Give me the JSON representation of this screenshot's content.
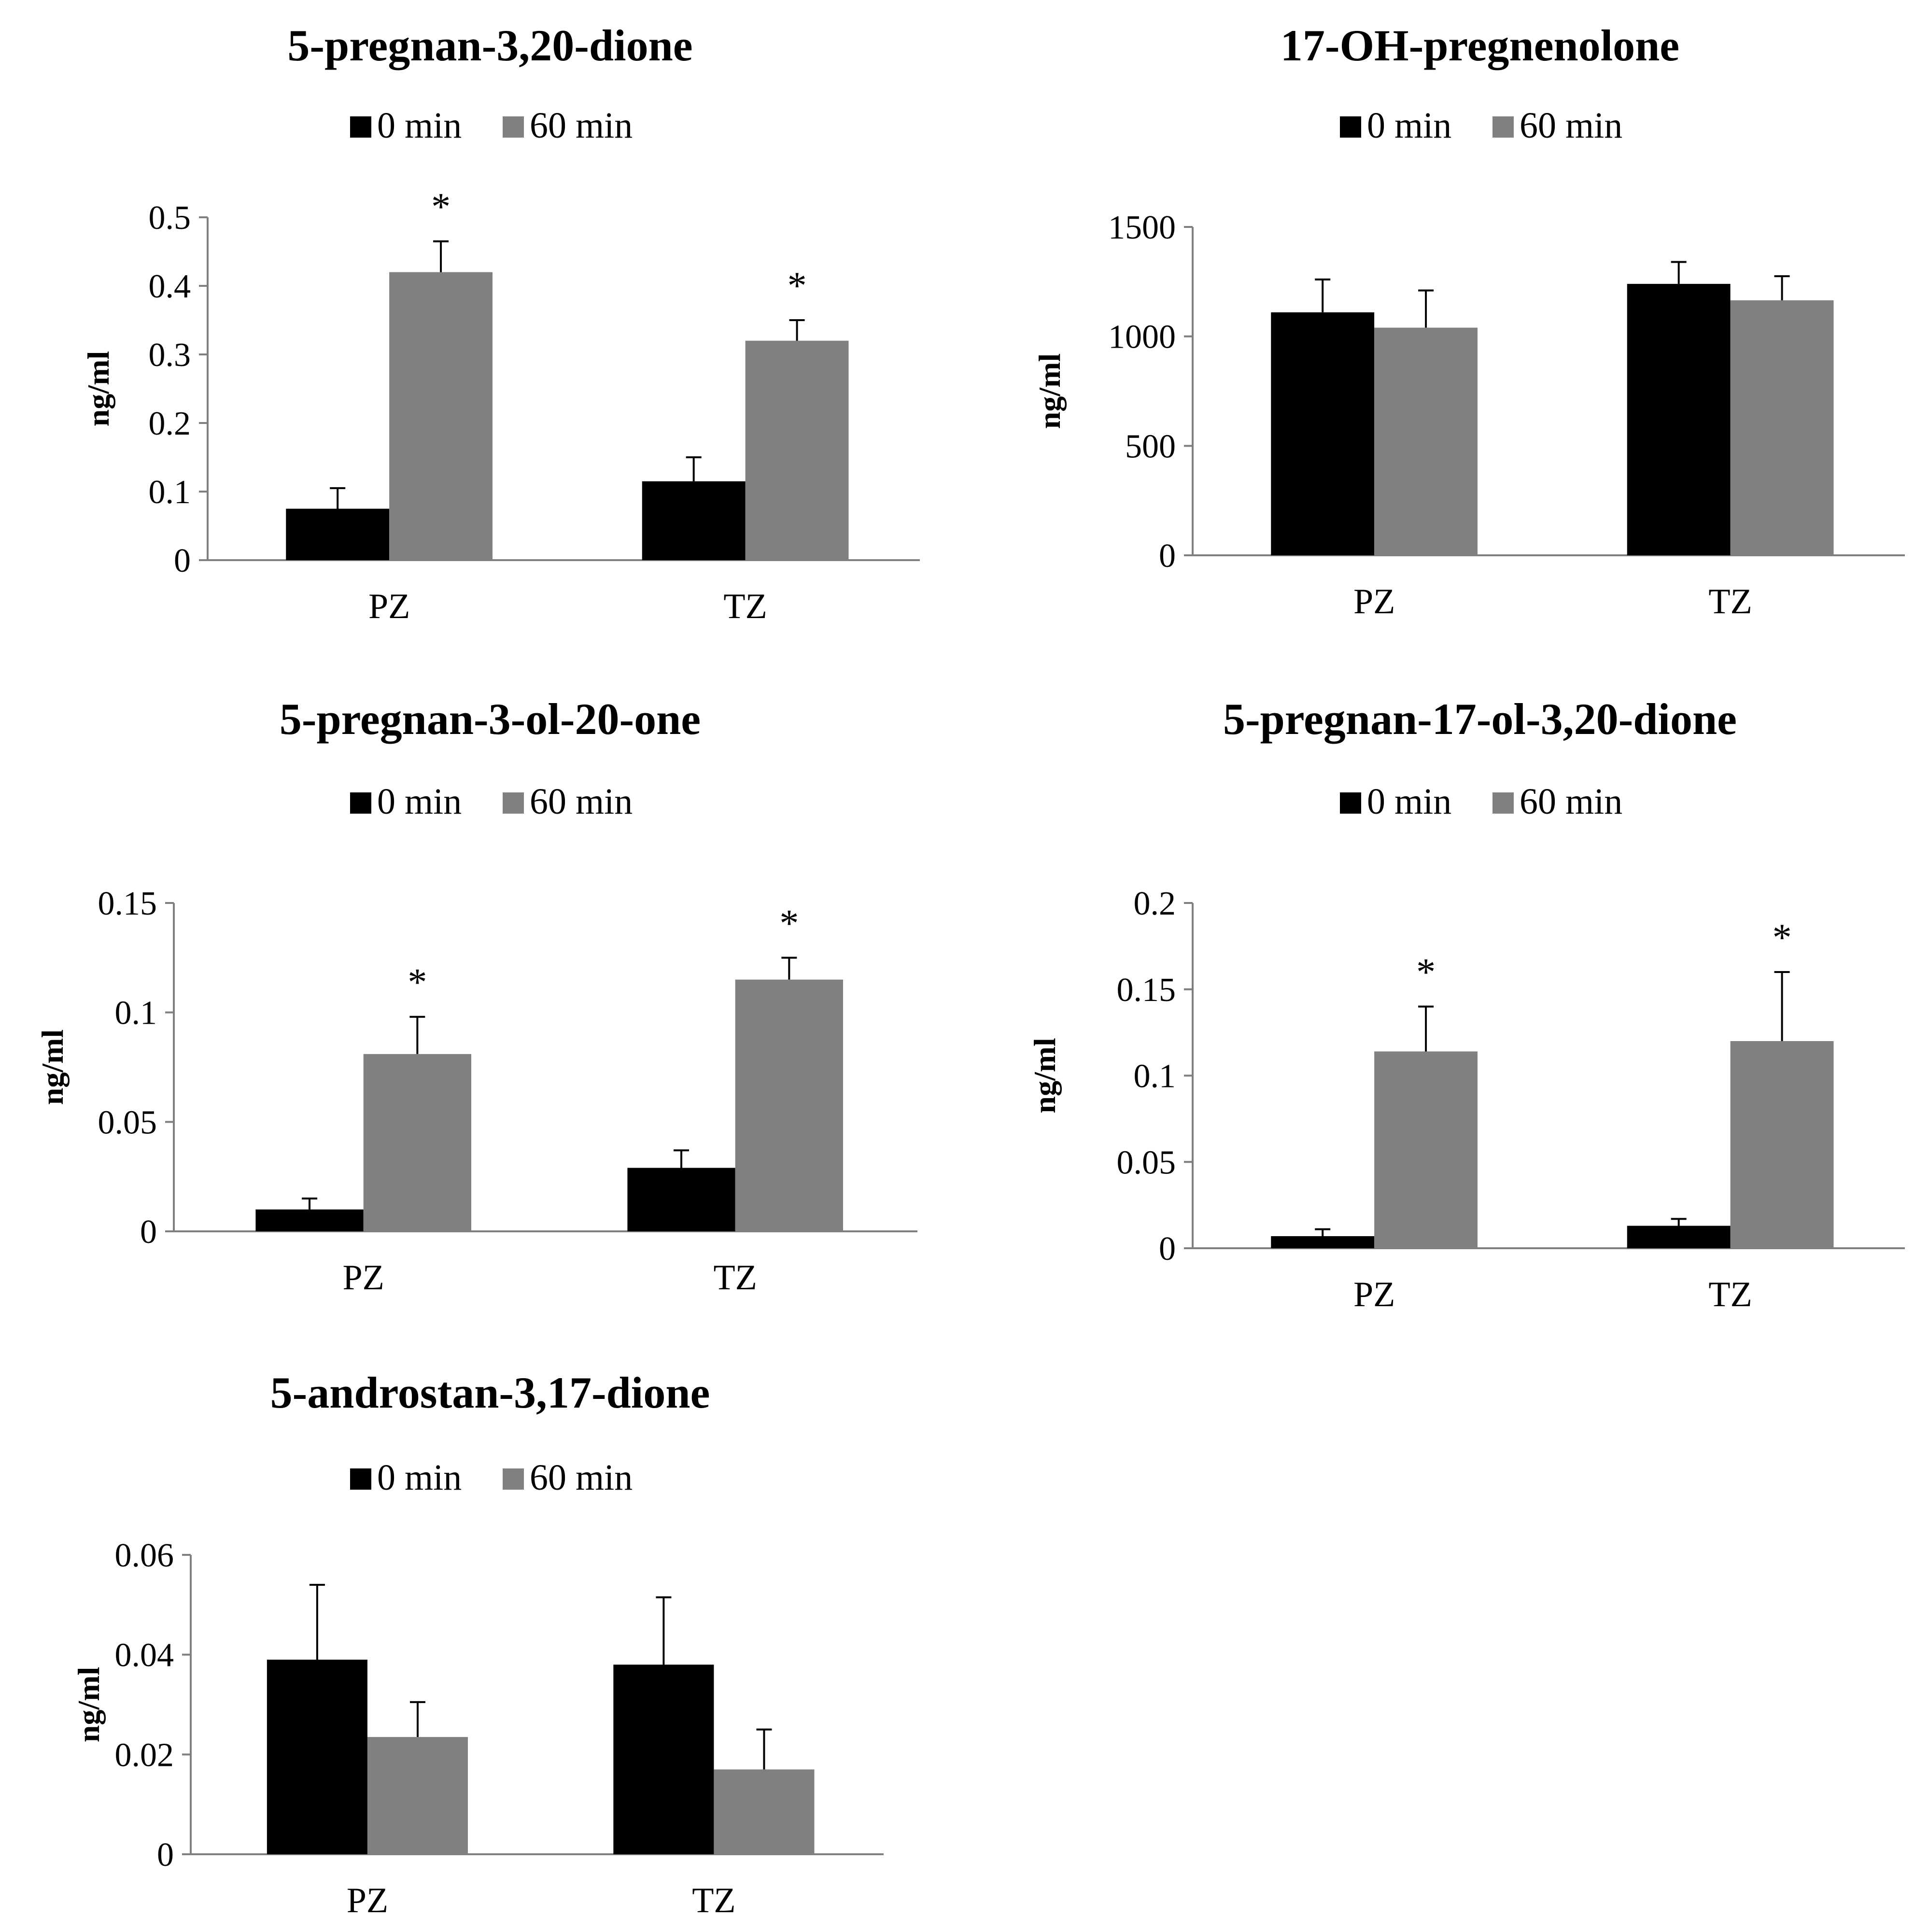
{
  "chart_data": [
    {
      "type": "bar",
      "title": "5-pregnan-3,20-dione",
      "ylabel": "ng/ml",
      "categories": [
        "PZ",
        "TZ"
      ],
      "ylim": [
        0,
        0.5
      ],
      "yticks": [
        "0",
        "0.1",
        "0.2",
        "0.3",
        "0.4",
        "0.5"
      ],
      "series": [
        {
          "name": "0 min",
          "color": "#000000",
          "values": [
            0.075,
            0.115
          ],
          "errors": [
            0.03,
            0.035
          ]
        },
        {
          "name": "60 min",
          "color": "#808080",
          "values": [
            0.42,
            0.32
          ],
          "errors": [
            0.045,
            0.03
          ]
        }
      ],
      "significance": [
        {
          "category": 0,
          "series": 1,
          "label": "*"
        },
        {
          "category": 1,
          "series": 1,
          "label": "*"
        }
      ]
    },
    {
      "type": "bar",
      "title": "17-OH-pregnenolone",
      "ylabel": "ng/ml",
      "categories": [
        "PZ",
        "TZ"
      ],
      "ylim": [
        0,
        1500
      ],
      "yticks": [
        "0",
        "500",
        "1000",
        "1500"
      ],
      "series": [
        {
          "name": "0 min",
          "color": "#000000",
          "values": [
            1110,
            1240
          ],
          "errors": [
            150,
            100
          ]
        },
        {
          "name": "60 min",
          "color": "#808080",
          "values": [
            1040,
            1165
          ],
          "errors": [
            170,
            110
          ]
        }
      ],
      "significance": []
    },
    {
      "type": "bar",
      "title": "5-pregnan-3-ol-20-one",
      "ylabel": "ng/ml",
      "categories": [
        "PZ",
        "TZ"
      ],
      "ylim": [
        0,
        0.15
      ],
      "yticks": [
        "0",
        "0.05",
        "0.1",
        "0.15"
      ],
      "series": [
        {
          "name": "0 min",
          "color": "#000000",
          "values": [
            0.01,
            0.029
          ],
          "errors": [
            0.005,
            0.008
          ]
        },
        {
          "name": "60 min",
          "color": "#808080",
          "values": [
            0.081,
            0.115
          ],
          "errors": [
            0.017,
            0.01
          ]
        }
      ],
      "significance": [
        {
          "category": 0,
          "series": 1,
          "label": "*"
        },
        {
          "category": 1,
          "series": 1,
          "label": "*"
        }
      ]
    },
    {
      "type": "bar",
      "title": "5-pregnan-17-ol-3,20-dione",
      "ylabel": "ng/ml",
      "categories": [
        "PZ",
        "TZ"
      ],
      "ylim": [
        0,
        0.2
      ],
      "yticks": [
        "0",
        "0.05",
        "0.1",
        "0.15",
        "0.2"
      ],
      "series": [
        {
          "name": "0 min",
          "color": "#000000",
          "values": [
            0.007,
            0.013
          ],
          "errors": [
            0.004,
            0.004
          ]
        },
        {
          "name": "60 min",
          "color": "#808080",
          "values": [
            0.114,
            0.12
          ],
          "errors": [
            0.026,
            0.04
          ]
        }
      ],
      "significance": [
        {
          "category": 0,
          "series": 1,
          "label": "*"
        },
        {
          "category": 1,
          "series": 1,
          "label": "*"
        }
      ]
    },
    {
      "type": "bar",
      "title": "5-androstan-3,17-dione",
      "ylabel": "ng/ml",
      "categories": [
        "PZ",
        "TZ"
      ],
      "ylim": [
        0,
        0.06
      ],
      "yticks": [
        "0",
        "0.02",
        "0.04",
        "0.06"
      ],
      "series": [
        {
          "name": "0 min",
          "color": "#000000",
          "values": [
            0.039,
            0.038
          ],
          "errors": [
            0.015,
            0.0135
          ]
        },
        {
          "name": "60 min",
          "color": "#808080",
          "values": [
            0.0235,
            0.017
          ],
          "errors": [
            0.007,
            0.008
          ]
        }
      ],
      "significance": []
    }
  ]
}
